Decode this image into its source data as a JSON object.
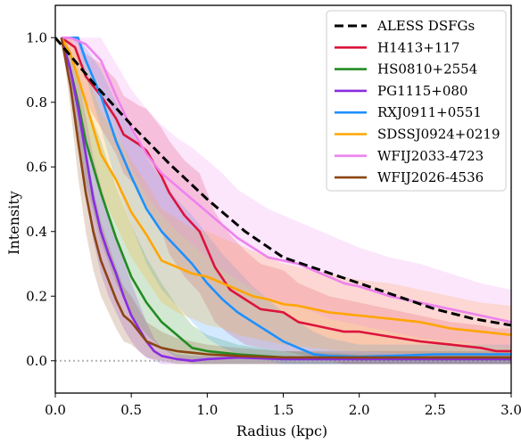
{
  "chart_data": {
    "type": "line",
    "title": "",
    "xlabel": "Radius (kpc)",
    "ylabel": "Intensity",
    "xlim": [
      0.0,
      3.0
    ],
    "ylim": [
      -0.1,
      1.1
    ],
    "xticks": [
      0.0,
      0.5,
      1.0,
      1.5,
      2.0,
      2.5,
      3.0
    ],
    "xtick_labels": [
      "0.0",
      "0.5",
      "1.0",
      "1.5",
      "2.0",
      "2.5",
      "3.0"
    ],
    "yticks": [
      0.0,
      0.2,
      0.4,
      0.6,
      0.8,
      1.0
    ],
    "ytick_labels": [
      "0.0",
      "0.2",
      "0.4",
      "0.6",
      "0.8",
      "1.0"
    ],
    "legend_position": "top-right",
    "grid": false,
    "zero_line": {
      "y": 0.0,
      "style": "dotted",
      "color": "#b3b3b3"
    },
    "series": [
      {
        "name": "ALESS DSFGs",
        "color": "#000000",
        "style": "dashed",
        "x": [
          0.0,
          0.25,
          0.5,
          0.75,
          1.0,
          1.25,
          1.5,
          1.75,
          2.0,
          2.25,
          2.5,
          2.75,
          3.0
        ],
        "y": [
          1.0,
          0.86,
          0.73,
          0.61,
          0.5,
          0.4,
          0.32,
          0.28,
          0.24,
          0.2,
          0.16,
          0.13,
          0.11
        ]
      },
      {
        "name": "H1413+117",
        "color": "#dc143c",
        "style": "solid",
        "x": [
          0.04,
          0.13,
          0.2,
          0.3,
          0.4,
          0.45,
          0.55,
          0.6,
          0.7,
          0.75,
          0.85,
          0.95,
          1.05,
          1.15,
          1.25,
          1.35,
          1.5,
          1.6,
          1.7,
          1.8,
          1.9,
          2.0,
          2.2,
          2.4,
          2.5,
          2.6,
          2.8,
          2.9,
          3.0
        ],
        "y": [
          1.0,
          0.97,
          0.88,
          0.82,
          0.75,
          0.7,
          0.67,
          0.65,
          0.57,
          0.52,
          0.45,
          0.4,
          0.29,
          0.22,
          0.19,
          0.16,
          0.15,
          0.12,
          0.11,
          0.1,
          0.09,
          0.09,
          0.075,
          0.06,
          0.055,
          0.05,
          0.04,
          0.03,
          0.03
        ],
        "lower": [
          1.0,
          0.93,
          0.8,
          0.72,
          0.64,
          0.58,
          0.53,
          0.48,
          0.4,
          0.33,
          0.26,
          0.21,
          0.12,
          0.08,
          0.05,
          0.04,
          0.03,
          0.02,
          0.01,
          0.0,
          -0.01,
          -0.01,
          -0.01,
          -0.01,
          -0.01,
          -0.01,
          -0.01,
          -0.01,
          -0.01
        ],
        "upper": [
          1.0,
          1.0,
          0.95,
          0.92,
          0.87,
          0.82,
          0.79,
          0.78,
          0.72,
          0.68,
          0.62,
          0.58,
          0.46,
          0.39,
          0.34,
          0.3,
          0.28,
          0.24,
          0.22,
          0.2,
          0.19,
          0.18,
          0.16,
          0.14,
          0.13,
          0.12,
          0.11,
          0.1,
          0.1
        ]
      },
      {
        "name": "HS0810+2554",
        "color": "#228b22",
        "style": "solid",
        "x": [
          0.04,
          0.1,
          0.15,
          0.2,
          0.3,
          0.4,
          0.5,
          0.6,
          0.7,
          0.8,
          0.9,
          1.0,
          1.2,
          1.5,
          2.0,
          2.5,
          3.0
        ],
        "y": [
          1.0,
          0.9,
          0.8,
          0.68,
          0.52,
          0.38,
          0.26,
          0.18,
          0.12,
          0.08,
          0.04,
          0.03,
          0.02,
          0.01,
          0.005,
          0.005,
          0.005
        ],
        "lower": [
          1.0,
          0.84,
          0.7,
          0.55,
          0.37,
          0.24,
          0.14,
          0.08,
          0.04,
          0.01,
          -0.01,
          -0.01,
          -0.01,
          -0.01,
          -0.01,
          -0.01,
          -0.01
        ],
        "upper": [
          1.0,
          0.96,
          0.9,
          0.8,
          0.68,
          0.54,
          0.42,
          0.32,
          0.24,
          0.17,
          0.11,
          0.08,
          0.05,
          0.03,
          0.02,
          0.02,
          0.02
        ]
      },
      {
        "name": "PG1115+080",
        "color": "#8a2be2",
        "style": "solid",
        "x": [
          0.04,
          0.1,
          0.15,
          0.2,
          0.25,
          0.3,
          0.35,
          0.4,
          0.45,
          0.5,
          0.55,
          0.6,
          0.65,
          0.7,
          0.8,
          0.9,
          1.0,
          1.2,
          1.5,
          2.0,
          2.5,
          3.0
        ],
        "y": [
          1.0,
          0.9,
          0.78,
          0.64,
          0.5,
          0.4,
          0.33,
          0.27,
          0.2,
          0.14,
          0.1,
          0.06,
          0.03,
          0.015,
          0.005,
          0.0,
          0.005,
          0.01,
          0.005,
          0.005,
          0.005,
          0.005
        ],
        "lower": [
          1.0,
          0.84,
          0.68,
          0.52,
          0.37,
          0.27,
          0.2,
          0.15,
          0.1,
          0.06,
          0.03,
          0.01,
          0.0,
          -0.01,
          -0.01,
          -0.01,
          -0.01,
          -0.01,
          -0.01,
          -0.01,
          -0.01,
          -0.01
        ],
        "upper": [
          1.0,
          0.96,
          0.88,
          0.76,
          0.63,
          0.54,
          0.46,
          0.39,
          0.31,
          0.24,
          0.18,
          0.12,
          0.07,
          0.04,
          0.02,
          0.015,
          0.015,
          0.02,
          0.015,
          0.015,
          0.015,
          0.015
        ]
      },
      {
        "name": "RXJ0911+0551",
        "color": "#1e90ff",
        "style": "solid",
        "x": [
          0.04,
          0.1,
          0.15,
          0.2,
          0.3,
          0.4,
          0.5,
          0.6,
          0.7,
          0.8,
          0.9,
          1.0,
          1.1,
          1.2,
          1.3,
          1.4,
          1.5,
          1.6,
          1.7,
          1.8,
          2.0,
          2.5,
          3.0
        ],
        "y": [
          1.0,
          1.0,
          1.0,
          0.93,
          0.82,
          0.68,
          0.57,
          0.47,
          0.4,
          0.35,
          0.3,
          0.24,
          0.19,
          0.15,
          0.12,
          0.09,
          0.06,
          0.04,
          0.02,
          0.015,
          0.012,
          0.02,
          0.02
        ],
        "lower": [
          1.0,
          1.0,
          0.98,
          0.88,
          0.72,
          0.55,
          0.42,
          0.3,
          0.22,
          0.17,
          0.12,
          0.07,
          0.04,
          0.02,
          0.01,
          0.0,
          -0.01,
          -0.01,
          -0.01,
          -0.01,
          -0.01,
          -0.01,
          -0.01
        ],
        "upper": [
          1.0,
          1.0,
          1.0,
          0.97,
          0.9,
          0.8,
          0.71,
          0.63,
          0.56,
          0.5,
          0.45,
          0.39,
          0.33,
          0.28,
          0.23,
          0.19,
          0.15,
          0.12,
          0.09,
          0.07,
          0.05,
          0.05,
          0.05
        ]
      },
      {
        "name": "SDSSJ0924+0219",
        "color": "#ffa500",
        "style": "solid",
        "x": [
          0.04,
          0.1,
          0.2,
          0.3,
          0.4,
          0.5,
          0.6,
          0.7,
          0.8,
          0.9,
          1.0,
          1.1,
          1.2,
          1.3,
          1.4,
          1.5,
          1.6,
          1.7,
          1.8,
          1.9,
          2.0,
          2.2,
          2.4,
          2.6,
          2.8,
          3.0
        ],
        "y": [
          1.0,
          0.95,
          0.8,
          0.64,
          0.56,
          0.46,
          0.39,
          0.31,
          0.29,
          0.27,
          0.26,
          0.24,
          0.22,
          0.2,
          0.19,
          0.175,
          0.17,
          0.16,
          0.15,
          0.145,
          0.14,
          0.13,
          0.12,
          0.1,
          0.09,
          0.08
        ],
        "lower": [
          1.0,
          0.9,
          0.7,
          0.52,
          0.42,
          0.32,
          0.25,
          0.18,
          0.15,
          0.13,
          0.11,
          0.1,
          0.08,
          0.07,
          0.06,
          0.05,
          0.045,
          0.04,
          0.035,
          0.03,
          0.03,
          0.025,
          0.02,
          0.015,
          0.01,
          0.01
        ],
        "upper": [
          1.0,
          1.0,
          0.9,
          0.77,
          0.7,
          0.62,
          0.55,
          0.47,
          0.44,
          0.41,
          0.4,
          0.38,
          0.36,
          0.34,
          0.32,
          0.3,
          0.29,
          0.28,
          0.27,
          0.26,
          0.25,
          0.24,
          0.22,
          0.2,
          0.18,
          0.17
        ]
      },
      {
        "name": "WFIJ2033-4723",
        "color": "#ee82ee",
        "style": "solid",
        "x": [
          0.04,
          0.1,
          0.2,
          0.3,
          0.4,
          0.5,
          0.6,
          0.7,
          0.8,
          0.9,
          1.0,
          1.1,
          1.2,
          1.3,
          1.4,
          1.5,
          1.6,
          1.7,
          1.8,
          1.9,
          2.0,
          2.2,
          2.4,
          2.6,
          2.8,
          3.0
        ],
        "y": [
          1.0,
          1.0,
          0.98,
          0.93,
          0.82,
          0.72,
          0.64,
          0.58,
          0.54,
          0.5,
          0.46,
          0.42,
          0.38,
          0.35,
          0.32,
          0.31,
          0.3,
          0.28,
          0.26,
          0.24,
          0.23,
          0.2,
          0.18,
          0.16,
          0.14,
          0.12
        ],
        "lower": [
          1.0,
          0.98,
          0.92,
          0.85,
          0.72,
          0.6,
          0.51,
          0.45,
          0.4,
          0.36,
          0.32,
          0.28,
          0.25,
          0.22,
          0.19,
          0.18,
          0.17,
          0.15,
          0.13,
          0.12,
          0.11,
          0.09,
          0.07,
          0.06,
          0.05,
          0.04
        ],
        "upper": [
          1.0,
          1.0,
          1.0,
          1.0,
          0.92,
          0.84,
          0.78,
          0.73,
          0.69,
          0.66,
          0.62,
          0.58,
          0.53,
          0.5,
          0.47,
          0.45,
          0.43,
          0.41,
          0.39,
          0.37,
          0.35,
          0.32,
          0.3,
          0.27,
          0.24,
          0.22
        ]
      },
      {
        "name": "WFIJ2026-4536",
        "color": "#8b4513",
        "style": "solid",
        "x": [
          0.04,
          0.1,
          0.15,
          0.2,
          0.25,
          0.3,
          0.35,
          0.4,
          0.45,
          0.5,
          0.55,
          0.6,
          0.7,
          0.8,
          0.9,
          1.0,
          1.2,
          1.5,
          2.0,
          2.5,
          3.0
        ],
        "y": [
          1.0,
          0.85,
          0.68,
          0.52,
          0.4,
          0.31,
          0.25,
          0.19,
          0.14,
          0.12,
          0.09,
          0.06,
          0.04,
          0.03,
          0.025,
          0.02,
          0.015,
          0.01,
          0.01,
          0.01,
          0.01
        ],
        "lower": [
          1.0,
          0.78,
          0.57,
          0.4,
          0.28,
          0.2,
          0.15,
          0.1,
          0.06,
          0.05,
          0.03,
          0.01,
          0.0,
          -0.01,
          -0.01,
          -0.01,
          -0.01,
          -0.01,
          -0.01,
          -0.01,
          -0.01
        ],
        "upper": [
          1.0,
          0.92,
          0.79,
          0.65,
          0.53,
          0.43,
          0.36,
          0.29,
          0.23,
          0.2,
          0.16,
          0.12,
          0.09,
          0.07,
          0.06,
          0.05,
          0.04,
          0.03,
          0.03,
          0.03,
          0.03
        ]
      }
    ]
  }
}
